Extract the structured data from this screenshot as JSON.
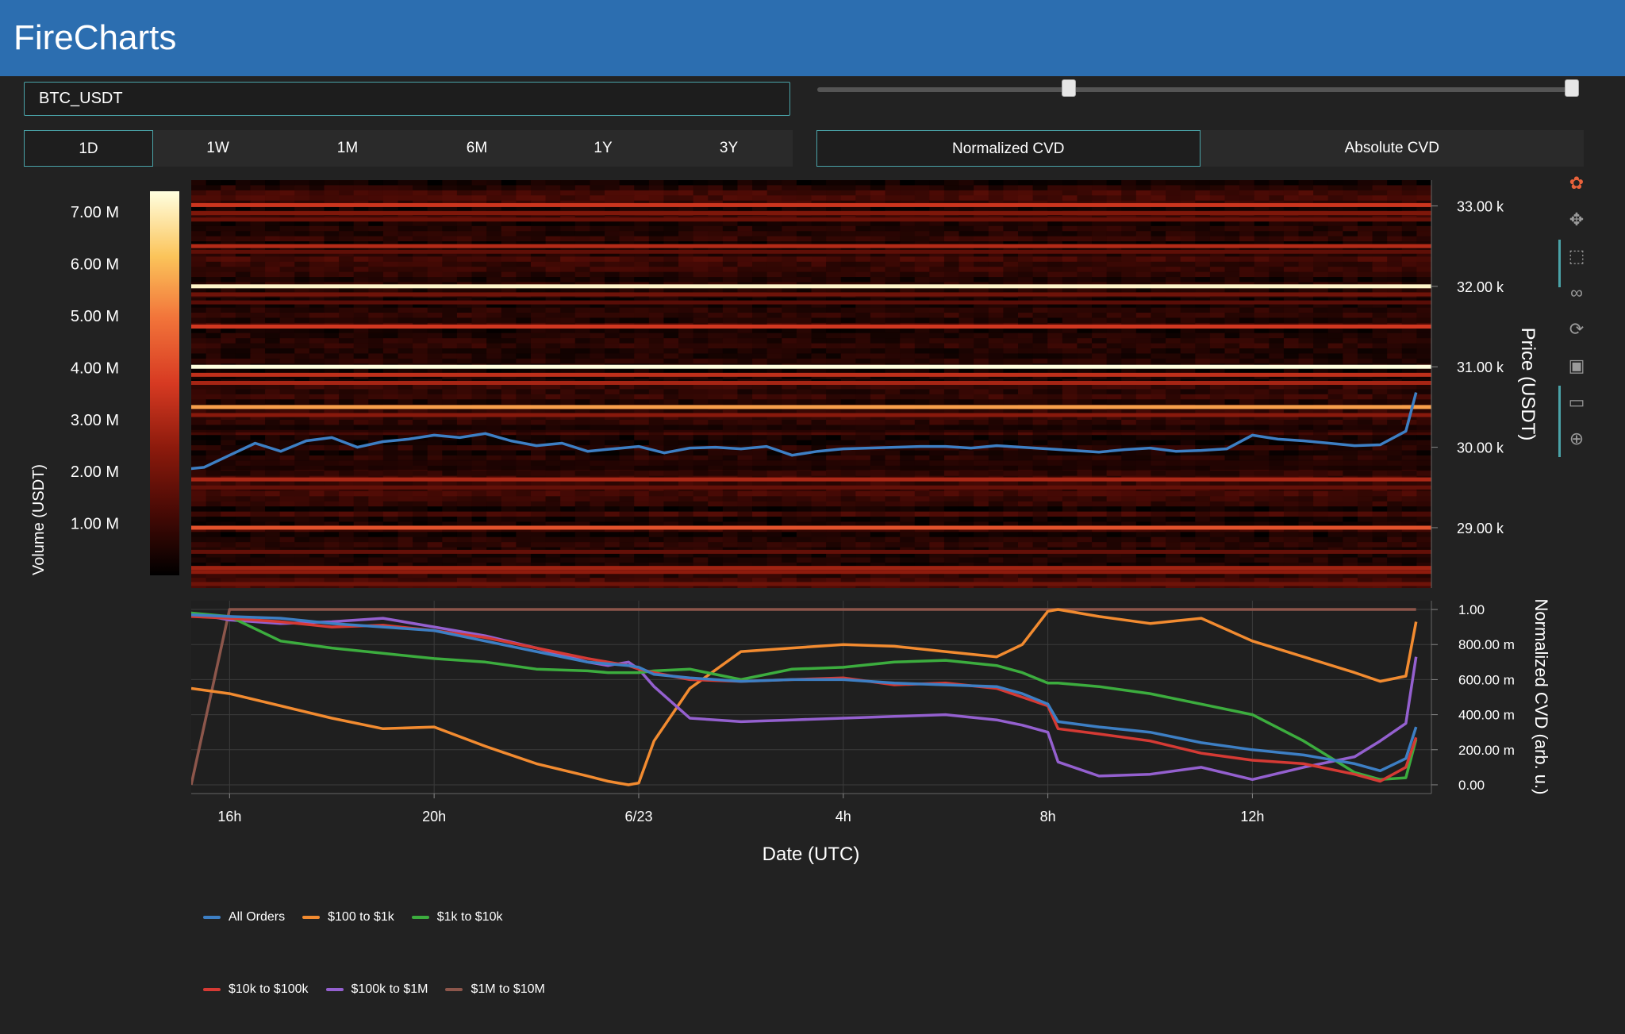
{
  "app": {
    "title": "FireCharts"
  },
  "pair_input": {
    "value": "BTC_USDT"
  },
  "range_slider": {
    "low": 0.33,
    "high": 1.0
  },
  "timeframes": [
    {
      "label": "1D",
      "active": true
    },
    {
      "label": "1W",
      "active": false
    },
    {
      "label": "1M",
      "active": false
    },
    {
      "label": "6M",
      "active": false
    },
    {
      "label": "1Y",
      "active": false
    },
    {
      "label": "3Y",
      "active": false
    }
  ],
  "cvd_modes": [
    {
      "label": "Normalized CVD",
      "active": true
    },
    {
      "label": "Absolute CVD",
      "active": false
    }
  ],
  "modebar": [
    {
      "name": "plotly-logo-icon",
      "glyph": "✿"
    },
    {
      "name": "pan-icon",
      "glyph": "✥"
    },
    {
      "name": "zoom-box-icon",
      "glyph": "⬚"
    },
    {
      "name": "lasso-icon",
      "glyph": "∞"
    },
    {
      "name": "reset-axes-icon",
      "glyph": "⟳"
    },
    {
      "name": "save-image-icon",
      "glyph": "▣"
    },
    {
      "name": "hover-compare-icon",
      "glyph": "▭"
    },
    {
      "name": "spike-lines-icon",
      "glyph": "⊕"
    }
  ],
  "chart_data": [
    {
      "type": "heatmap",
      "title": "",
      "ylabel": "Price (USDT)",
      "y_ticks": [
        {
          "value": 29000,
          "label": "29.00 k"
        },
        {
          "value": 30000,
          "label": "30.00 k"
        },
        {
          "value": 31000,
          "label": "31.00 k"
        },
        {
          "value": 32000,
          "label": "32.00 k"
        },
        {
          "value": 33000,
          "label": "33.00 k"
        }
      ],
      "ylim": [
        28250,
        33320
      ],
      "colorbar": {
        "title": "Volume (USDT)",
        "range": [
          0,
          7400000
        ],
        "ticks": [
          {
            "value": 1000000,
            "label": "1.00 M"
          },
          {
            "value": 2000000,
            "label": "2.00 M"
          },
          {
            "value": 3000000,
            "label": "3.00 M"
          },
          {
            "value": 4000000,
            "label": "4.00 M"
          },
          {
            "value": 5000000,
            "label": "5.00 M"
          },
          {
            "value": 6000000,
            "label": "6.00 M"
          },
          {
            "value": 7000000,
            "label": "7.00 M"
          }
        ],
        "colors": [
          "#000000",
          "#4a0a05",
          "#8c1a0c",
          "#d73a22",
          "#f2743a",
          "#fbc45a",
          "#ffffe0"
        ]
      },
      "price_levels": [
        {
          "price": 33010,
          "volume": 3500000
        },
        {
          "price": 32910,
          "volume": 2200000
        },
        {
          "price": 32830,
          "volume": 1800000
        },
        {
          "price": 32500,
          "volume": 3100000
        },
        {
          "price": 32430,
          "volume": 1600000
        },
        {
          "price": 32000,
          "volume": 7200000
        },
        {
          "price": 31900,
          "volume": 1900000
        },
        {
          "price": 31800,
          "volume": 1500000
        },
        {
          "price": 31500,
          "volume": 3600000
        },
        {
          "price": 31000,
          "volume": 7400000
        },
        {
          "price": 30900,
          "volume": 3300000
        },
        {
          "price": 30800,
          "volume": 2900000
        },
        {
          "price": 30500,
          "volume": 5600000
        },
        {
          "price": 30400,
          "volume": 2400000
        },
        {
          "price": 29600,
          "volume": 3000000
        },
        {
          "price": 29500,
          "volume": 1700000
        },
        {
          "price": 29000,
          "volume": 4200000
        },
        {
          "price": 28700,
          "volume": 1700000
        },
        {
          "price": 28500,
          "volume": 2800000
        },
        {
          "price": 28450,
          "volume": 2500000
        },
        {
          "price": 28300,
          "volume": 1900000
        }
      ],
      "price_line": {
        "name": "Price",
        "color": "#3d7fc4",
        "x_hours": [
          0,
          0.5,
          1,
          1.5,
          2,
          2.5,
          3,
          3.5,
          4,
          4.5,
          5,
          5.5,
          6,
          6.5,
          7,
          7.5,
          8,
          8.5,
          9,
          9.5,
          10,
          10.5,
          11,
          11.5,
          12,
          12.5,
          13,
          13.5,
          14,
          14.5,
          15,
          15.5,
          16,
          16.5,
          17,
          17.5,
          18,
          18.5,
          19,
          19.5,
          20,
          20.5,
          21,
          21.5,
          22,
          22.5,
          23,
          23.5,
          24,
          24.2
        ],
        "y": [
          29720,
          29750,
          29900,
          30050,
          29950,
          30080,
          30120,
          30000,
          30070,
          30100,
          30150,
          30120,
          30170,
          30080,
          30020,
          30050,
          29950,
          29980,
          30010,
          29930,
          29990,
          30000,
          29980,
          30010,
          29900,
          29950,
          29980,
          29990,
          30000,
          30010,
          30010,
          29990,
          30020,
          30000,
          29980,
          29960,
          29940,
          29970,
          29990,
          29950,
          29960,
          29980,
          30150,
          30100,
          30080,
          30050,
          30020,
          30030,
          30200,
          30680
        ]
      }
    },
    {
      "type": "line",
      "title": "",
      "xlabel": "Date (UTC)",
      "ylabel": "Normalized CVD (arb. u.)",
      "x_ticks": [
        {
          "value": 1,
          "label": "16h"
        },
        {
          "value": 5,
          "label": "20h"
        },
        {
          "value": 9,
          "label": "6/23"
        },
        {
          "value": 13,
          "label": "4h"
        },
        {
          "value": 17,
          "label": "8h"
        },
        {
          "value": 21,
          "label": "12h"
        }
      ],
      "xlim": [
        0.25,
        24.5
      ],
      "y_ticks": [
        {
          "value": 0,
          "label": "0.00"
        },
        {
          "value": 0.2,
          "label": "200.00 m"
        },
        {
          "value": 0.4,
          "label": "400.00 m"
        },
        {
          "value": 0.6,
          "label": "600.00 m"
        },
        {
          "value": 0.8,
          "label": "800.00 m"
        },
        {
          "value": 1.0,
          "label": "1.00"
        }
      ],
      "ylim": [
        -0.05,
        1.05
      ],
      "legend": "bottom",
      "x": [
        0.25,
        1,
        2,
        3,
        4,
        5,
        6,
        7,
        8,
        8.4,
        8.8,
        9,
        9.3,
        10,
        11,
        12,
        13,
        14,
        15,
        16,
        16.5,
        17,
        17.2,
        18,
        19,
        20,
        21,
        22,
        23,
        23.5,
        24,
        24.2
      ],
      "series": [
        {
          "name": "All Orders",
          "color": "#3d7fc4",
          "values": [
            0.97,
            0.96,
            0.95,
            0.92,
            0.9,
            0.88,
            0.82,
            0.76,
            0.7,
            0.69,
            0.68,
            0.67,
            0.63,
            0.61,
            0.59,
            0.6,
            0.6,
            0.58,
            0.57,
            0.56,
            0.52,
            0.46,
            0.36,
            0.33,
            0.3,
            0.24,
            0.2,
            0.17,
            0.12,
            0.08,
            0.15,
            0.33
          ]
        },
        {
          "name": "$100 to $1k",
          "color": "#f28b30",
          "values": [
            0.55,
            0.52,
            0.45,
            0.38,
            0.32,
            0.33,
            0.22,
            0.12,
            0.05,
            0.02,
            0.0,
            0.01,
            0.25,
            0.55,
            0.76,
            0.78,
            0.8,
            0.79,
            0.76,
            0.73,
            0.8,
            0.99,
            1.0,
            0.96,
            0.92,
            0.95,
            0.82,
            0.73,
            0.64,
            0.59,
            0.62,
            0.93
          ]
        },
        {
          "name": "$1k to $10k",
          "color": "#3cad3e",
          "values": [
            0.98,
            0.96,
            0.82,
            0.78,
            0.75,
            0.72,
            0.7,
            0.66,
            0.65,
            0.64,
            0.64,
            0.64,
            0.65,
            0.66,
            0.6,
            0.66,
            0.67,
            0.7,
            0.71,
            0.68,
            0.64,
            0.58,
            0.58,
            0.56,
            0.52,
            0.46,
            0.4,
            0.25,
            0.07,
            0.03,
            0.04,
            0.26
          ]
        },
        {
          "name": "$10k to $100k",
          "color": "#d53a34",
          "values": [
            0.96,
            0.95,
            0.93,
            0.9,
            0.91,
            0.88,
            0.84,
            0.78,
            0.72,
            0.7,
            0.68,
            0.66,
            0.64,
            0.6,
            0.59,
            0.6,
            0.61,
            0.57,
            0.58,
            0.55,
            0.5,
            0.45,
            0.32,
            0.29,
            0.25,
            0.18,
            0.14,
            0.12,
            0.06,
            0.02,
            0.1,
            0.27
          ]
        },
        {
          "name": "$100k to $1M",
          "color": "#9460cf",
          "values": [
            0.98,
            0.94,
            0.92,
            0.93,
            0.95,
            0.9,
            0.85,
            0.78,
            0.7,
            0.68,
            0.7,
            0.66,
            0.56,
            0.38,
            0.36,
            0.37,
            0.38,
            0.39,
            0.4,
            0.37,
            0.34,
            0.3,
            0.13,
            0.05,
            0.06,
            0.1,
            0.03,
            0.1,
            0.16,
            0.25,
            0.35,
            0.73
          ]
        },
        {
          "name": "$1M to $10M",
          "color": "#8c564b",
          "values": [
            0.0,
            1.0,
            1.0,
            1.0,
            1.0,
            1.0,
            1.0,
            1.0,
            1.0,
            1.0,
            1.0,
            1.0,
            1.0,
            1.0,
            1.0,
            1.0,
            1.0,
            1.0,
            1.0,
            1.0,
            1.0,
            1.0,
            1.0,
            1.0,
            1.0,
            1.0,
            1.0,
            1.0,
            1.0,
            1.0,
            1.0,
            1.0
          ]
        }
      ]
    }
  ]
}
